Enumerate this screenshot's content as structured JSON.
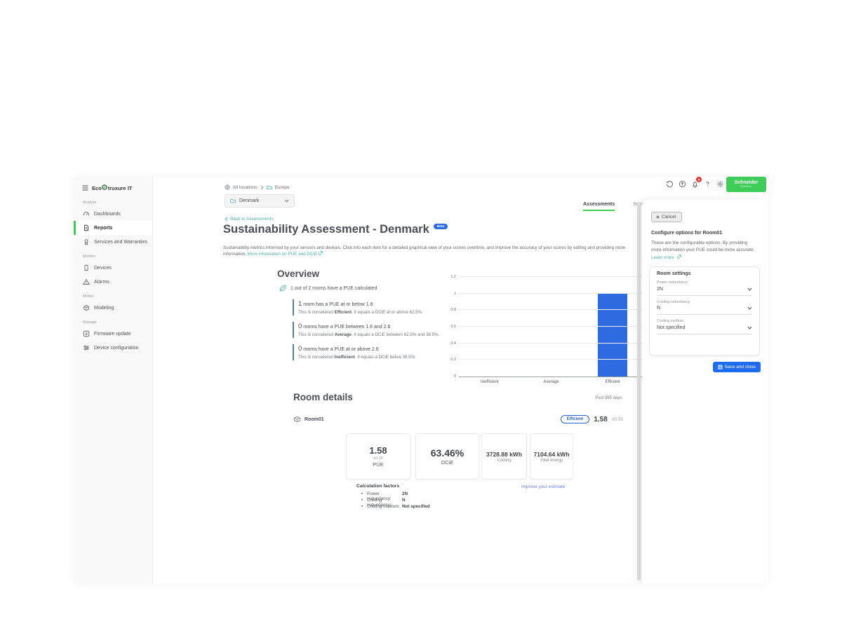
{
  "colors": {
    "accent_green": "#3DCD58",
    "link_teal": "#4AB3A3",
    "primary_blue": "#1E6BF0",
    "bar_blue": "#2E6BE0",
    "alert_red": "#E53935",
    "item_border_blue": "#5B7E9D"
  },
  "sidebar": {
    "brand": {
      "prefix": "Eco",
      "suffix": "truxure IT"
    },
    "sections": [
      {
        "label": "Analyze",
        "items": [
          {
            "label": "Dashboards"
          },
          {
            "label": "Reports",
            "active": true
          },
          {
            "label": "Services and Warranties"
          }
        ]
      },
      {
        "label": "Monitor",
        "items": [
          {
            "label": "Devices"
          },
          {
            "label": "Alarms"
          }
        ]
      },
      {
        "label": "Model",
        "items": [
          {
            "label": "Modeling"
          }
        ]
      },
      {
        "label": "Manage",
        "items": [
          {
            "label": "Firmware update"
          },
          {
            "label": "Device configuration"
          }
        ]
      }
    ]
  },
  "topbar": {
    "breadcrumb": {
      "root": "All locations",
      "current": "Europe"
    },
    "location_selector": {
      "value": "Denmark"
    },
    "notifications": {
      "count": "9"
    },
    "logo": {
      "line1": "Schneider",
      "line2": "Electric"
    }
  },
  "tabs": {
    "assessments": "Assessments",
    "sensors": "Sensors"
  },
  "page": {
    "back_link": "Back to Assessments",
    "title": "Sustainability Assessment - Denmark",
    "beta_badge": "Beta",
    "subtitle_line1": "Sustainability metrics informed by your sensors and devices. Click into each item for a detailed graphical view of your scores overtime, and improve the accuracy of your scores by editing and providing more",
    "subtitle_line2": "information.",
    "subtitle_link": "More information on PUE and DCiE"
  },
  "overview": {
    "heading": "Overview",
    "summary": "1 out of 2 rooms have a PUE calculated",
    "items": [
      {
        "count": "1",
        "text": " room has a PUE at or below 1.6",
        "sub_prefix": "This is considered ",
        "sub_bold": "Efficient",
        "sub_rest": ". It equals a DCiE at or above 62.5%."
      },
      {
        "count": "0",
        "text": " rooms have a PUE between 1.6 and 2.6",
        "sub_prefix": "This is considered ",
        "sub_bold": "Average",
        "sub_rest": ". It equals a DCiE between 62.5% and 38.5%."
      },
      {
        "count": "0",
        "text": " rooms have a PUE at or above 2.6",
        "sub_prefix": "This is considered ",
        "sub_bold": "Inefficient",
        "sub_rest": ". It equals a DCiE below 38.5%."
      }
    ]
  },
  "chart_data": {
    "type": "bar",
    "categories": [
      "Inefficient",
      "Average",
      "Efficient"
    ],
    "values": [
      0,
      0,
      1
    ],
    "title": "",
    "xlabel": "",
    "ylabel": "",
    "ylim": [
      0,
      1.2
    ],
    "yticks": [
      0,
      0.2,
      0.4,
      0.6,
      0.8,
      1,
      1.2
    ],
    "bar_color": "#2E6BE0",
    "grid": true,
    "legend": "none"
  },
  "room_details": {
    "heading": "Room details",
    "period": "Past 365 days:",
    "room_name": "Room01",
    "status_badge": "Efficient",
    "score": "1.58",
    "tolerance": "±0.26"
  },
  "cards": [
    {
      "value": "1.58",
      "sub": "±0.26",
      "label": "PUE"
    },
    {
      "value": "63.46%",
      "label": "DCiE"
    },
    {
      "value": "3728.88 kWh",
      "label": "Cooling"
    },
    {
      "value": "7104.64 kWh",
      "label": "Total energy"
    }
  ],
  "calc_factors": {
    "heading": "Calculation factors",
    "link": "Improve your estimate",
    "rows": [
      {
        "label": "Power redundancy:",
        "value": "2N"
      },
      {
        "label": "Cooling redundancy:",
        "value": "N"
      },
      {
        "label": "Cooling medium:",
        "value": "Not specified"
      }
    ]
  },
  "panel": {
    "cancel_label": "Cancel",
    "title": "Configure options for Room01",
    "body": "These are the configurable options. By providing more information your PUE could be more accurate.",
    "learn_more": "Learn more",
    "card_title": "Room settings",
    "fields": [
      {
        "label": "Power redundancy",
        "value": "2N"
      },
      {
        "label": "Cooling redundancy",
        "value": "N"
      },
      {
        "label": "Cooling medium",
        "value": "Not specified"
      }
    ],
    "save_label": "Save and close"
  }
}
